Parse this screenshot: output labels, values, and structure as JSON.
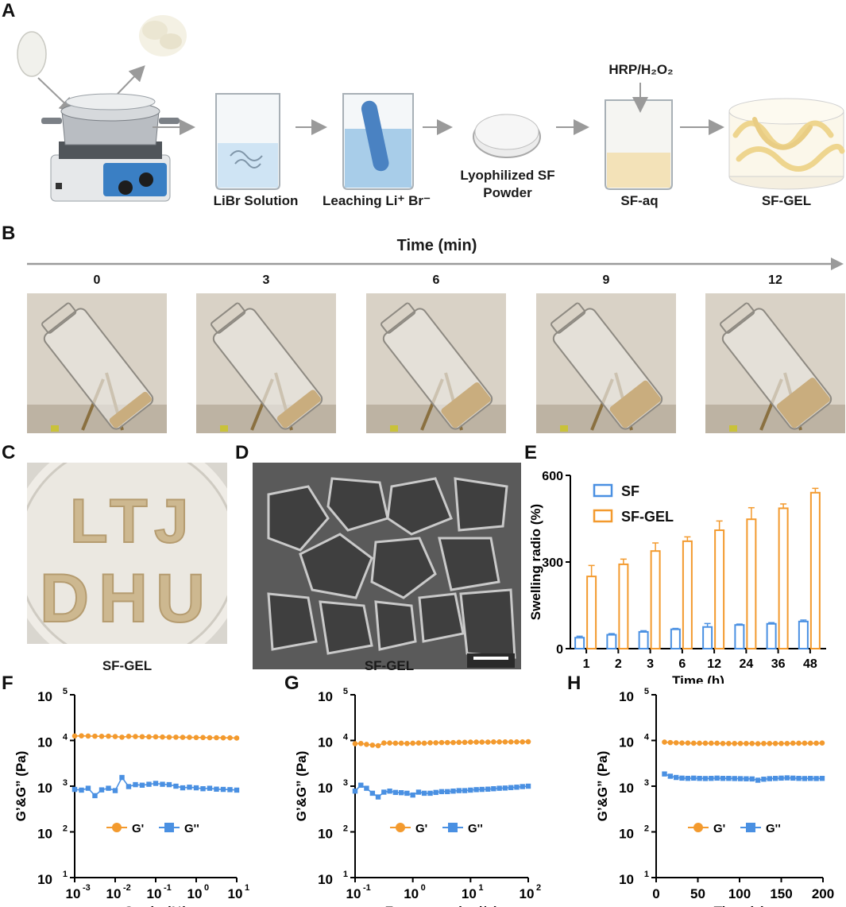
{
  "panels": {
    "A": "A",
    "B": "B",
    "C": "C",
    "D": "D",
    "E": "E",
    "F": "F",
    "G": "G",
    "H": "H"
  },
  "panelA": {
    "steps": [
      "LiBr Solution",
      "Leaching Li⁺ Br⁻",
      "Lyophilized SF Powder",
      "SF-aq",
      "SF-GEL"
    ],
    "reagent": "HRP/H₂O₂"
  },
  "panelB": {
    "title": "Time (min)",
    "times": [
      "0",
      "3",
      "6",
      "9",
      "12"
    ]
  },
  "panelC": {
    "caption": "SF-GEL",
    "letters": [
      "L",
      "T",
      "J",
      "D",
      "H",
      "U"
    ]
  },
  "panelD": {
    "caption": "SF-GEL"
  },
  "colors": {
    "sf": "#4a90e2",
    "sfgel": "#f39a2e",
    "gp": "#f39a2e",
    "gpp": "#4a90e2"
  },
  "chart_data": [
    {
      "id": "E",
      "type": "bar",
      "categories": [
        "1",
        "2",
        "3",
        "6",
        "12",
        "24",
        "36",
        "48"
      ],
      "xlabel": "Time (h)",
      "ylabel": "Swelling radio (%)",
      "ylim": [
        0,
        600
      ],
      "yticks": [
        "0",
        "300",
        "600"
      ],
      "series": [
        {
          "name": "SF",
          "values": [
            38,
            48,
            58,
            67,
            75,
            82,
            86,
            94
          ],
          "errors": [
            5,
            4,
            4,
            3,
            12,
            3,
            4,
            5
          ]
        },
        {
          "name": "SF-GEL",
          "values": [
            250,
            292,
            338,
            372,
            410,
            448,
            486,
            540
          ],
          "errors": [
            38,
            18,
            28,
            15,
            32,
            40,
            15,
            15
          ]
        }
      ],
      "legend": "top-left"
    },
    {
      "id": "F",
      "type": "line",
      "scale": "log-log",
      "xlabel": "Strain (%)",
      "ylabel": "G’&G” (Pa)",
      "xlim": [
        0.001,
        10
      ],
      "ylim": [
        10,
        100000
      ],
      "xticks": [
        {
          "b": "10",
          "e": "-3"
        },
        {
          "b": "10",
          "e": "-2"
        },
        {
          "b": "10",
          "e": "-1"
        },
        {
          "b": "10",
          "e": "0"
        },
        {
          "b": "10",
          "e": "1"
        }
      ],
      "yticks": [
        {
          "b": "10",
          "e": "1"
        },
        {
          "b": "10",
          "e": "2"
        },
        {
          "b": "10",
          "e": "3"
        },
        {
          "b": "10",
          "e": "4"
        },
        {
          "b": "10",
          "e": "5"
        }
      ],
      "series": [
        {
          "name": "G'",
          "x": [
            0.001,
            0.00147,
            0.00215,
            0.00316,
            0.00464,
            0.00681,
            0.01,
            0.0147,
            0.0215,
            0.0316,
            0.0464,
            0.0681,
            0.1,
            0.147,
            0.215,
            0.316,
            0.464,
            0.681,
            1,
            1.47,
            2.15,
            3.16,
            4.64,
            6.81,
            10
          ],
          "y": [
            12500,
            12600,
            12500,
            12400,
            12300,
            12400,
            12200,
            11800,
            12300,
            12200,
            12100,
            12000,
            12000,
            11900,
            11800,
            11800,
            11700,
            11700,
            11600,
            11600,
            11500,
            11500,
            11400,
            11400,
            11300
          ]
        },
        {
          "name": "G''",
          "x": [
            0.001,
            0.00147,
            0.00215,
            0.00316,
            0.00464,
            0.00681,
            0.01,
            0.0147,
            0.0215,
            0.0316,
            0.0464,
            0.0681,
            0.1,
            0.147,
            0.215,
            0.316,
            0.464,
            0.681,
            1,
            1.47,
            2.15,
            3.16,
            4.64,
            6.81,
            10
          ],
          "y": [
            850,
            820,
            900,
            620,
            830,
            900,
            800,
            1550,
            980,
            1080,
            1050,
            1100,
            1150,
            1100,
            1080,
            1000,
            920,
            950,
            920,
            880,
            900,
            860,
            850,
            840,
            820
          ]
        }
      ],
      "legend": "lower-middle"
    },
    {
      "id": "G",
      "type": "line",
      "scale": "log-log",
      "xlabel": "Frequency (rad/s)",
      "ylabel": "G’&G” (Pa)",
      "xlim": [
        0.1,
        100
      ],
      "ylim": [
        10,
        100000
      ],
      "xticks": [
        {
          "b": "10",
          "e": "-1"
        },
        {
          "b": "10",
          "e": "0"
        },
        {
          "b": "10",
          "e": "1"
        },
        {
          "b": "10",
          "e": "2"
        }
      ],
      "yticks": [
        {
          "b": "10",
          "e": "1"
        },
        {
          "b": "10",
          "e": "2"
        },
        {
          "b": "10",
          "e": "3"
        },
        {
          "b": "10",
          "e": "4"
        },
        {
          "b": "10",
          "e": "5"
        }
      ],
      "series": [
        {
          "name": "G'",
          "x": [
            0.1,
            0.126,
            0.158,
            0.2,
            0.251,
            0.316,
            0.398,
            0.501,
            0.631,
            0.794,
            1,
            1.26,
            1.58,
            2,
            2.51,
            3.16,
            3.98,
            5.01,
            6.31,
            7.94,
            10,
            12.6,
            15.8,
            20,
            25.1,
            31.6,
            39.8,
            50.1,
            63.1,
            79.4,
            100
          ],
          "y": [
            8500,
            8600,
            8200,
            7900,
            7700,
            8800,
            8800,
            8700,
            8700,
            8600,
            8700,
            8800,
            8700,
            8900,
            8900,
            9000,
            9000,
            9000,
            9100,
            9100,
            9200,
            9200,
            9200,
            9200,
            9300,
            9300,
            9300,
            9300,
            9300,
            9300,
            9400
          ]
        },
        {
          "name": "G''",
          "x": [
            0.1,
            0.126,
            0.158,
            0.2,
            0.251,
            0.316,
            0.398,
            0.501,
            0.631,
            0.794,
            1,
            1.26,
            1.58,
            2,
            2.51,
            3.16,
            3.98,
            5.01,
            6.31,
            7.94,
            10,
            12.6,
            15.8,
            20,
            25.1,
            31.6,
            39.8,
            50.1,
            63.1,
            79.4,
            100
          ],
          "y": [
            780,
            1050,
            900,
            700,
            580,
            740,
            780,
            730,
            720,
            700,
            640,
            740,
            700,
            700,
            730,
            760,
            760,
            780,
            800,
            800,
            820,
            840,
            850,
            860,
            880,
            900,
            910,
            930,
            950,
            980,
            1000
          ]
        }
      ],
      "legend": "lower-middle"
    },
    {
      "id": "H",
      "type": "line",
      "scale": "linear-log",
      "xlabel": "Time (s)",
      "ylabel": "G’&G” (Pa)",
      "xlim": [
        0,
        200
      ],
      "ylim": [
        10,
        100000
      ],
      "xticks": [
        {
          "b": "0",
          "e": ""
        },
        {
          "b": "50",
          "e": ""
        },
        {
          "b": "100",
          "e": ""
        },
        {
          "b": "150",
          "e": ""
        },
        {
          "b": "200",
          "e": ""
        }
      ],
      "xtickvals": [
        0,
        50,
        100,
        150,
        200
      ],
      "yticks": [
        {
          "b": "10",
          "e": "1"
        },
        {
          "b": "10",
          "e": "2"
        },
        {
          "b": "10",
          "e": "3"
        },
        {
          "b": "10",
          "e": "4"
        },
        {
          "b": "10",
          "e": "5"
        }
      ],
      "series": [
        {
          "name": "G'",
          "x": [
            10,
            17,
            24,
            31,
            38,
            45,
            52,
            59,
            66,
            73,
            80,
            87,
            94,
            101,
            108,
            115,
            122,
            129,
            136,
            143,
            150,
            157,
            164,
            171,
            178,
            185,
            192,
            199
          ],
          "y": [
            9200,
            9000,
            8900,
            8800,
            8800,
            8700,
            8700,
            8700,
            8700,
            8700,
            8600,
            8600,
            8600,
            8600,
            8600,
            8600,
            8500,
            8600,
            8600,
            8600,
            8600,
            8600,
            8700,
            8700,
            8700,
            8700,
            8700,
            8800
          ]
        },
        {
          "name": "G''",
          "x": [
            10,
            17,
            24,
            31,
            38,
            45,
            52,
            59,
            66,
            73,
            80,
            87,
            94,
            101,
            108,
            115,
            122,
            129,
            136,
            143,
            150,
            157,
            164,
            171,
            178,
            185,
            192,
            199
          ],
          "y": [
            1850,
            1650,
            1550,
            1500,
            1480,
            1500,
            1480,
            1470,
            1480,
            1500,
            1480,
            1480,
            1470,
            1460,
            1450,
            1440,
            1350,
            1420,
            1460,
            1480,
            1500,
            1520,
            1500,
            1480,
            1470,
            1480,
            1470,
            1480
          ]
        }
      ],
      "legend": "lower-middle"
    }
  ]
}
